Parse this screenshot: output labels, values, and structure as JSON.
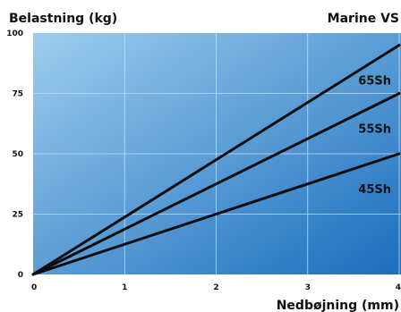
{
  "chart_data": {
    "type": "line",
    "title": "Marine VS",
    "ylabel": "Belastning (kg)",
    "xlabel": "Nedbøjning (mm)",
    "xlim": [
      0,
      4
    ],
    "ylim": [
      0,
      100
    ],
    "x_ticks": [
      "0",
      "1",
      "2",
      "3",
      "4"
    ],
    "y_ticks": [
      "0",
      "25",
      "50",
      "75",
      "100"
    ],
    "grid": true,
    "colors": {
      "gradient_start": "#9dcdee",
      "gradient_end": "#1a6dbd",
      "line": "#0d0d0d",
      "grid": "#c4dcf0"
    },
    "series": [
      {
        "name": "65Sh",
        "x": [
          0,
          4
        ],
        "y": [
          0,
          95
        ]
      },
      {
        "name": "55Sh",
        "x": [
          0,
          4
        ],
        "y": [
          0,
          75
        ]
      },
      {
        "name": "45Sh",
        "x": [
          0,
          4
        ],
        "y": [
          0,
          50
        ]
      }
    ]
  }
}
